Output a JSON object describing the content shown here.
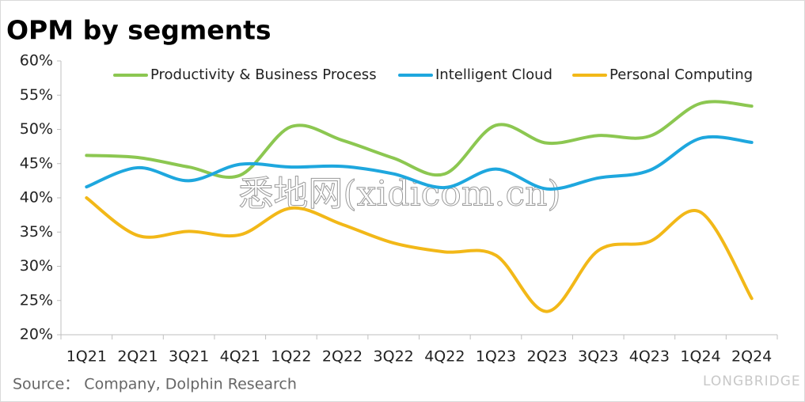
{
  "chart_data": {
    "type": "line",
    "title": "OPM by segments",
    "source": "Source：  Company, Dolphin Research",
    "watermark": "悉地网(xidicom.cn)",
    "brand": "LONGBRIDGE",
    "categories": [
      "1Q21",
      "2Q21",
      "3Q21",
      "4Q21",
      "1Q22",
      "2Q22",
      "3Q22",
      "4Q22",
      "1Q23",
      "2Q23",
      "3Q23",
      "4Q23",
      "1Q24",
      "2Q24"
    ],
    "series": [
      {
        "name": "Productivity & Business Process",
        "color": "#8cc751",
        "values": [
          46.2,
          45.9,
          44.5,
          43.3,
          50.4,
          48.4,
          45.8,
          43.5,
          50.6,
          48.0,
          49.1,
          49.0,
          53.8,
          53.4
        ]
      },
      {
        "name": "Intelligent Cloud",
        "color": "#1ea7de",
        "values": [
          41.6,
          44.4,
          42.5,
          44.9,
          44.5,
          44.6,
          43.5,
          41.5,
          44.2,
          41.3,
          42.9,
          44.0,
          48.7,
          48.1
        ]
      },
      {
        "name": "Personal Computing",
        "color": "#f2b818",
        "values": [
          40.0,
          34.5,
          35.1,
          34.6,
          38.5,
          36.1,
          33.4,
          32.1,
          31.6,
          23.4,
          32.3,
          33.6,
          37.9,
          25.3
        ]
      }
    ],
    "ylim": [
      20,
      60
    ],
    "yticks": [
      {
        "value": 20,
        "label": "20%"
      },
      {
        "value": 25,
        "label": "25%"
      },
      {
        "value": 30,
        "label": "30%"
      },
      {
        "value": 35,
        "label": "35%"
      },
      {
        "value": 40,
        "label": "40%"
      },
      {
        "value": 45,
        "label": "45%"
      },
      {
        "value": 50,
        "label": "50%"
      },
      {
        "value": 55,
        "label": "55%"
      },
      {
        "value": 60,
        "label": "60%"
      }
    ],
    "grid": false,
    "legend": "top",
    "smooth": true
  }
}
